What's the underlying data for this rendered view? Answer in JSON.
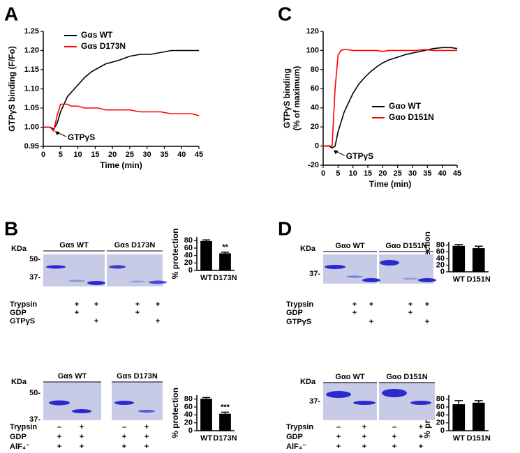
{
  "panel_labels": [
    "A",
    "B",
    "C",
    "D"
  ],
  "chart_data": [
    {
      "type": "line",
      "xlabel": "Time (min)",
      "ylabel": "GTPγS binding (F/Fo)",
      "annotation": "GTPγS",
      "legend": "upper left",
      "x": [
        0,
        1,
        2,
        3,
        4,
        5,
        6,
        7,
        8,
        10,
        12,
        14,
        16,
        18,
        20,
        22,
        25,
        28,
        31,
        34,
        37,
        40,
        43,
        45
      ],
      "series": [
        {
          "name": "Gαs WT",
          "color": "#000000",
          "values": [
            1.0,
            1.0,
            1.0,
            0.995,
            1.01,
            1.04,
            1.06,
            1.08,
            1.09,
            1.11,
            1.13,
            1.145,
            1.155,
            1.165,
            1.17,
            1.175,
            1.185,
            1.19,
            1.19,
            1.195,
            1.2,
            1.2,
            1.2,
            1.2
          ]
        },
        {
          "name": "Gαs D173N",
          "color": "#ff0000",
          "values": [
            1.0,
            1.0,
            1.0,
            0.99,
            1.03,
            1.06,
            1.06,
            1.06,
            1.055,
            1.055,
            1.05,
            1.05,
            1.05,
            1.045,
            1.045,
            1.045,
            1.045,
            1.04,
            1.04,
            1.04,
            1.035,
            1.035,
            1.035,
            1.03
          ]
        }
      ],
      "xlim": [
        0,
        45
      ],
      "xticks": [
        0,
        5,
        10,
        15,
        20,
        25,
        30,
        35,
        40,
        45
      ],
      "ylim": [
        0.95,
        1.25
      ],
      "yticks": [
        0.95,
        {
          "value": 1,
          "label": "1.00"
        },
        1.05,
        {
          "value": 1.1,
          "label": "1.10"
        },
        1.15,
        {
          "value": 1.2,
          "label": "1.20"
        },
        1.25
      ]
    },
    {
      "type": "line",
      "xlabel": "Time (min)",
      "ylabel": [
        "GTPγS binding",
        "(% of maximum)"
      ],
      "annotation": "GTPγS",
      "legend": "lower right",
      "x": [
        0,
        1,
        2,
        3,
        4,
        5,
        6,
        7,
        8,
        10,
        12,
        14,
        16,
        18,
        20,
        22,
        25,
        28,
        31,
        34,
        37,
        40,
        43,
        45
      ],
      "series": [
        {
          "name": "Gαo WT",
          "color": "#000000",
          "values": [
            0,
            0,
            0,
            -2,
            0,
            15,
            25,
            35,
            42,
            55,
            65,
            72,
            78,
            83,
            87,
            90,
            93,
            96,
            98,
            100,
            102,
            103,
            103,
            102
          ]
        },
        {
          "name": "Gαo D151N",
          "color": "#ff0000",
          "values": [
            0,
            0,
            0,
            0,
            60,
            95,
            100,
            101,
            101,
            100,
            100,
            100,
            100,
            100,
            99,
            100,
            100,
            100,
            100,
            101,
            100,
            100,
            100,
            100
          ]
        }
      ],
      "xlim": [
        0,
        45
      ],
      "xticks": [
        0,
        5,
        10,
        15,
        20,
        25,
        30,
        35,
        40,
        45
      ],
      "ylim": [
        -20,
        120
      ],
      "yticks": [
        -20,
        0,
        20,
        40,
        60,
        80,
        100,
        120
      ]
    },
    {
      "type": "bar",
      "categories": [
        "WT",
        "D173N"
      ],
      "values": [
        79,
        46
      ],
      "errors": [
        3,
        3
      ],
      "annotations": [
        null,
        "**"
      ],
      "color": "#000000",
      "ylabel": "% protection",
      "ylim": [
        0,
        90
      ],
      "yticks": [
        0,
        20,
        40,
        60,
        80
      ]
    },
    {
      "type": "bar",
      "categories": [
        "WT",
        "D173N"
      ],
      "values": [
        81,
        43
      ],
      "errors": [
        3,
        4
      ],
      "annotations": [
        null,
        "***"
      ],
      "color": "#000000",
      "ylabel": "% protection",
      "ylim": [
        0,
        90
      ],
      "yticks": [
        0,
        20,
        40,
        60,
        80
      ]
    },
    {
      "type": "bar",
      "categories": [
        "WT",
        "D151N"
      ],
      "values": [
        78,
        71
      ],
      "errors": [
        4,
        6
      ],
      "color": "#000000",
      "ylabel": "% protection",
      "ylim": [
        0,
        90
      ],
      "yticks": [
        0,
        20,
        40,
        60,
        80
      ]
    },
    {
      "type": "bar",
      "categories": [
        "WT",
        "D151N"
      ],
      "values": [
        67,
        71
      ],
      "errors": [
        9,
        5
      ],
      "color": "#000000",
      "ylabel": "% protection",
      "ylim": [
        0,
        90
      ],
      "yticks": [
        0,
        20,
        40,
        60,
        80
      ]
    }
  ],
  "gels": [
    {
      "unit": "KDa",
      "markers": [
        "50-",
        "37-"
      ],
      "headers": [
        "Gαs WT",
        "Gαs D173N"
      ],
      "rows": [
        {
          "label": "Trypsin",
          "signs": [
            null,
            "+",
            "+",
            null,
            "+",
            "+"
          ]
        },
        {
          "label": "GDP",
          "signs": [
            null,
            "+",
            null,
            null,
            "+",
            null
          ]
        },
        {
          "label": "GTPγS",
          "signs": [
            null,
            null,
            "+",
            null,
            null,
            "+"
          ]
        }
      ]
    },
    {
      "unit": "KDa",
      "markers": [
        "50-",
        "37-"
      ],
      "headers": [
        "Gαs WT",
        "Gαs D173N"
      ],
      "rows": [
        {
          "label": "Trypsin",
          "signs": [
            "–",
            "+",
            "–",
            "+"
          ]
        },
        {
          "label": "GDP",
          "signs": [
            "+",
            "+",
            "+",
            "+"
          ]
        },
        {
          "label": "AlF₄⁻",
          "signs": [
            "+",
            "+",
            "+",
            "+"
          ]
        }
      ]
    },
    {
      "unit": "KDa",
      "markers": [
        "37-"
      ],
      "headers": [
        "Gαo WT",
        "Gαo D151N"
      ],
      "rows": [
        {
          "label": "Trypsin",
          "signs": [
            null,
            "+",
            "+",
            null,
            "+",
            "+"
          ]
        },
        {
          "label": "GDP",
          "signs": [
            null,
            "+",
            null,
            null,
            "+",
            null
          ]
        },
        {
          "label": "GTPγS",
          "signs": [
            null,
            null,
            "+",
            null,
            null,
            "+"
          ]
        }
      ]
    },
    {
      "unit": "KDa",
      "markers": [
        "37-"
      ],
      "headers": [
        "Gαo WT",
        "Gαo D151N"
      ],
      "rows": [
        {
          "label": "Trypsin",
          "signs": [
            "–",
            "+",
            "–",
            "+"
          ]
        },
        {
          "label": "GDP",
          "signs": [
            "+",
            "+",
            "+",
            "+"
          ]
        },
        {
          "label": "AlF₄⁻",
          "signs": [
            "+",
            "+",
            "+",
            "+"
          ]
        }
      ]
    }
  ]
}
